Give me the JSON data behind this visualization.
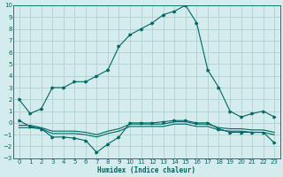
{
  "xlabel": "Humidex (Indice chaleur)",
  "bg_color": "#d4ecec",
  "grid_color": "#b0d0d0",
  "line_color": "#006666",
  "xlim": [
    -0.5,
    23.5
  ],
  "ylim": [
    -3,
    10
  ],
  "xticks": [
    0,
    1,
    2,
    3,
    4,
    5,
    6,
    7,
    8,
    9,
    10,
    11,
    12,
    13,
    14,
    15,
    16,
    17,
    18,
    19,
    20,
    21,
    22,
    23
  ],
  "yticks": [
    -3,
    -2,
    -1,
    0,
    1,
    2,
    3,
    4,
    5,
    6,
    7,
    8,
    9,
    10
  ],
  "series1_x": [
    0,
    1,
    2,
    3,
    4,
    5,
    6,
    7,
    8,
    9,
    10,
    11,
    12,
    13,
    14,
    15,
    16,
    17,
    18,
    19,
    20,
    21,
    22,
    23
  ],
  "series1_y": [
    2.0,
    0.8,
    1.2,
    3.0,
    3.0,
    3.5,
    3.5,
    4.0,
    4.5,
    6.5,
    7.5,
    8.0,
    8.5,
    9.2,
    9.5,
    10.0,
    8.5,
    4.5,
    3.0,
    1.0,
    0.5,
    0.8,
    1.0,
    0.5
  ],
  "series2_x": [
    0,
    1,
    2,
    3,
    4,
    5,
    6,
    7,
    8,
    9,
    10,
    11,
    12,
    13,
    14,
    15,
    16,
    17,
    18,
    19,
    20,
    21,
    22,
    23
  ],
  "series2_y": [
    0.2,
    -0.3,
    -0.5,
    -1.2,
    -1.2,
    -1.3,
    -1.5,
    -2.5,
    -1.8,
    -1.2,
    0.0,
    0.0,
    0.0,
    0.1,
    0.2,
    0.2,
    0.0,
    0.0,
    -0.5,
    -0.8,
    -0.8,
    -0.8,
    -0.8,
    -1.7
  ],
  "series3_x": [
    0,
    1,
    2,
    3,
    4,
    5,
    6,
    7,
    8,
    9,
    10,
    11,
    12,
    13,
    14,
    15,
    16,
    17,
    18,
    19,
    20,
    21,
    22,
    23
  ],
  "series3_y": [
    -0.2,
    -0.2,
    -0.4,
    -0.7,
    -0.7,
    -0.7,
    -0.8,
    -1.0,
    -0.7,
    -0.5,
    -0.1,
    -0.1,
    -0.1,
    -0.1,
    0.1,
    0.1,
    -0.1,
    -0.1,
    -0.4,
    -0.5,
    -0.5,
    -0.6,
    -0.6,
    -0.8
  ],
  "series4_x": [
    0,
    1,
    2,
    3,
    4,
    5,
    6,
    7,
    8,
    9,
    10,
    11,
    12,
    13,
    14,
    15,
    16,
    17,
    18,
    19,
    20,
    21,
    22,
    23
  ],
  "series4_y": [
    -0.4,
    -0.4,
    -0.5,
    -0.9,
    -0.9,
    -0.9,
    -1.0,
    -1.2,
    -0.9,
    -0.7,
    -0.3,
    -0.3,
    -0.3,
    -0.3,
    -0.1,
    -0.1,
    -0.3,
    -0.3,
    -0.6,
    -0.7,
    -0.7,
    -0.8,
    -0.8,
    -1.0
  ]
}
